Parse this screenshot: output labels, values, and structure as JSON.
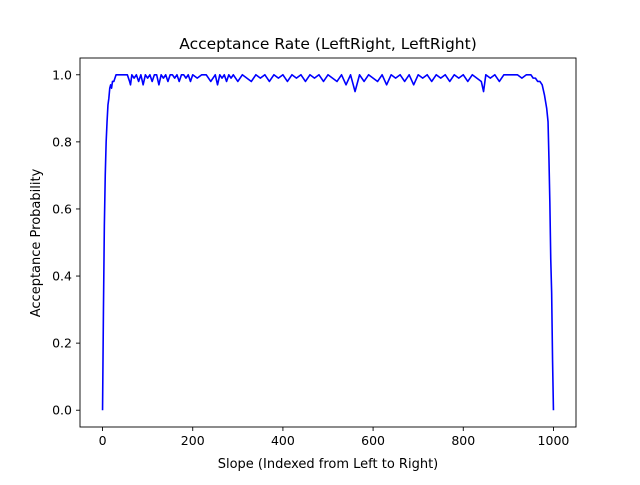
{
  "chart_data": {
    "type": "line",
    "title": "Acceptance Rate (LeftRight, LeftRight)",
    "xlabel": "Slope (Indexed from Left to Right)",
    "ylabel": "Acceptance Probability",
    "xlim": [
      -50,
      1050
    ],
    "ylim": [
      -0.05,
      1.05
    ],
    "xticks": [
      0,
      200,
      400,
      600,
      800,
      1000
    ],
    "xtick_labels": [
      "0",
      "200",
      "400",
      "600",
      "800",
      "1000"
    ],
    "yticks": [
      0.0,
      0.2,
      0.4,
      0.6,
      0.8,
      1.0
    ],
    "ytick_labels": [
      "0.0",
      "0.2",
      "0.4",
      "0.6",
      "0.8",
      "1.0"
    ],
    "grid": false,
    "series": [
      {
        "color": "#0000ff",
        "x": [
          0,
          2,
          4,
          6,
          8,
          10,
          12,
          14,
          16,
          18,
          20,
          22,
          25,
          30,
          35,
          40,
          45,
          50,
          55,
          60,
          62,
          65,
          70,
          75,
          80,
          85,
          90,
          95,
          100,
          105,
          110,
          115,
          120,
          125,
          130,
          135,
          140,
          145,
          150,
          155,
          160,
          165,
          170,
          175,
          180,
          185,
          190,
          195,
          200,
          210,
          220,
          230,
          240,
          250,
          255,
          260,
          265,
          270,
          275,
          280,
          285,
          290,
          300,
          310,
          320,
          330,
          340,
          350,
          360,
          370,
          380,
          390,
          400,
          410,
          420,
          430,
          440,
          450,
          460,
          470,
          480,
          490,
          500,
          510,
          520,
          530,
          540,
          550,
          560,
          570,
          580,
          590,
          600,
          610,
          620,
          630,
          640,
          650,
          660,
          670,
          680,
          690,
          700,
          710,
          720,
          730,
          740,
          750,
          760,
          770,
          780,
          790,
          800,
          810,
          820,
          830,
          840,
          845,
          850,
          860,
          870,
          880,
          890,
          900,
          910,
          920,
          930,
          940,
          950,
          955,
          960,
          965,
          970,
          975,
          980,
          985,
          988,
          990,
          992,
          994,
          996,
          998,
          1000
        ],
        "y": [
          0.0,
          0.3,
          0.55,
          0.7,
          0.8,
          0.86,
          0.91,
          0.93,
          0.96,
          0.97,
          0.96,
          0.98,
          0.98,
          1.0,
          1.0,
          1.0,
          1.0,
          1.0,
          1.0,
          0.98,
          0.97,
          1.0,
          0.99,
          1.0,
          0.98,
          1.0,
          0.97,
          1.0,
          0.99,
          1.0,
          0.98,
          1.0,
          1.0,
          0.97,
          1.0,
          0.99,
          1.0,
          0.98,
          1.0,
          1.0,
          0.99,
          1.0,
          0.98,
          1.0,
          1.0,
          0.99,
          1.0,
          0.98,
          1.0,
          0.99,
          1.0,
          1.0,
          0.98,
          1.0,
          0.97,
          1.0,
          0.99,
          1.0,
          0.98,
          1.0,
          0.99,
          1.0,
          0.98,
          1.0,
          0.99,
          0.98,
          1.0,
          0.99,
          1.0,
          0.98,
          1.0,
          0.99,
          1.0,
          0.98,
          1.0,
          0.99,
          1.0,
          0.98,
          1.0,
          0.99,
          1.0,
          0.98,
          1.0,
          0.99,
          0.98,
          1.0,
          0.97,
          1.0,
          0.95,
          1.0,
          0.98,
          1.0,
          0.99,
          0.98,
          1.0,
          0.97,
          1.0,
          0.99,
          1.0,
          0.98,
          1.0,
          0.97,
          1.0,
          0.99,
          1.0,
          0.98,
          1.0,
          0.99,
          1.0,
          0.98,
          1.0,
          0.99,
          1.0,
          0.98,
          1.0,
          0.99,
          0.98,
          0.95,
          1.0,
          0.99,
          1.0,
          0.98,
          1.0,
          1.0,
          1.0,
          1.0,
          0.99,
          1.0,
          1.0,
          0.99,
          0.99,
          0.98,
          0.98,
          0.97,
          0.94,
          0.9,
          0.86,
          0.75,
          0.62,
          0.45,
          0.35,
          0.15,
          0.0
        ]
      }
    ]
  }
}
